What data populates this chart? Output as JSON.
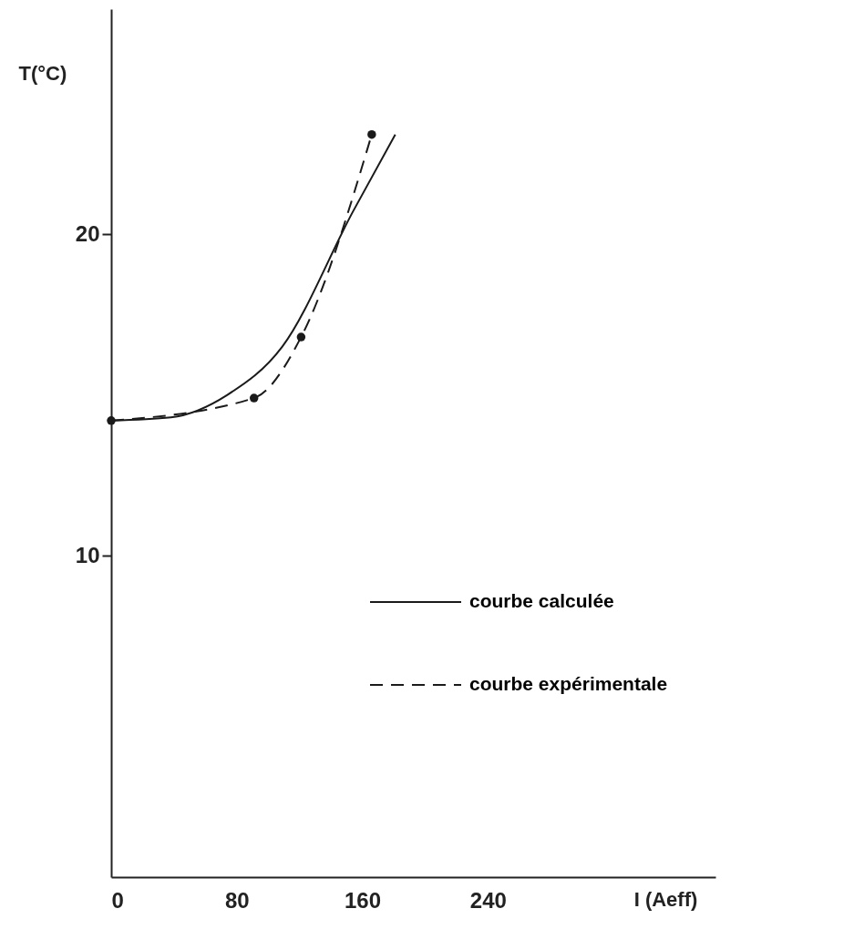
{
  "chart_data": {
    "type": "line",
    "xlabel": "I (Aeff)",
    "ylabel": "T(°C)",
    "xlim": [
      0,
      385
    ],
    "ylim": [
      0,
      27
    ],
    "xticks": [
      0,
      80,
      160,
      240
    ],
    "yticks": [
      10,
      20
    ],
    "legend": "right",
    "grid": false,
    "series": [
      {
        "name": "courbe calculée",
        "color": "#1a1a1a",
        "line_style": "solid",
        "marker": "none",
        "x": [
          0,
          38,
          74,
          109,
          154,
          181
        ],
        "values": [
          14.2,
          14.3,
          15.0,
          16.5,
          20.7,
          23.1
        ]
      },
      {
        "name": "courbe expérimentale",
        "color": "#1a1a1a",
        "line_style": "dashed",
        "marker": "circle",
        "x": [
          0,
          91,
          121,
          166
        ],
        "values": [
          14.2,
          14.9,
          16.8,
          23.1
        ]
      }
    ]
  }
}
